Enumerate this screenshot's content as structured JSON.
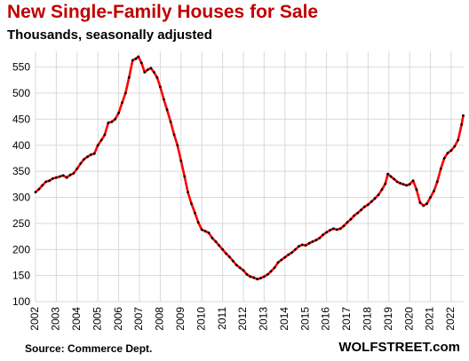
{
  "chart_data": {
    "type": "line",
    "title": "New Single-Family Houses for Sale",
    "subtitle": "Thousands, seasonally adjusted",
    "source": "Source: Commerce Dept.",
    "brand": "WOLFSTREET.com",
    "grid": true,
    "ylim": [
      100,
      580
    ],
    "xlim": [
      2002.0,
      2022.6
    ],
    "yticks": [
      100,
      150,
      200,
      250,
      300,
      350,
      400,
      450,
      500,
      550
    ],
    "xticks": [
      "2002",
      "2003",
      "2004",
      "2005",
      "2006",
      "2007",
      "2008",
      "2009",
      "2010",
      "2011",
      "2012",
      "2013",
      "2014",
      "2015",
      "2016",
      "2017",
      "2018",
      "2019",
      "2020",
      "2021",
      "2022"
    ],
    "line_color": "#ff0000",
    "marker_color": "#000000",
    "series": [
      {
        "name": "",
        "points": [
          [
            2002.0,
            310
          ],
          [
            2002.17,
            316
          ],
          [
            2002.33,
            323
          ],
          [
            2002.5,
            330
          ],
          [
            2002.67,
            332
          ],
          [
            2002.83,
            336
          ],
          [
            2003.0,
            338
          ],
          [
            2003.17,
            340
          ],
          [
            2003.33,
            342
          ],
          [
            2003.5,
            338
          ],
          [
            2003.67,
            343
          ],
          [
            2003.83,
            346
          ],
          [
            2004.0,
            355
          ],
          [
            2004.17,
            365
          ],
          [
            2004.33,
            373
          ],
          [
            2004.5,
            378
          ],
          [
            2004.67,
            382
          ],
          [
            2004.83,
            384
          ],
          [
            2005.0,
            400
          ],
          [
            2005.17,
            410
          ],
          [
            2005.33,
            420
          ],
          [
            2005.5,
            443
          ],
          [
            2005.67,
            445
          ],
          [
            2005.83,
            450
          ],
          [
            2006.0,
            462
          ],
          [
            2006.17,
            482
          ],
          [
            2006.33,
            500
          ],
          [
            2006.5,
            530
          ],
          [
            2006.67,
            563
          ],
          [
            2006.83,
            566
          ],
          [
            2006.95,
            570
          ],
          [
            2007.1,
            558
          ],
          [
            2007.25,
            540
          ],
          [
            2007.4,
            545
          ],
          [
            2007.55,
            548
          ],
          [
            2007.7,
            540
          ],
          [
            2007.85,
            530
          ],
          [
            2008.0,
            512
          ],
          [
            2008.17,
            488
          ],
          [
            2008.33,
            468
          ],
          [
            2008.5,
            445
          ],
          [
            2008.67,
            420
          ],
          [
            2008.83,
            400
          ],
          [
            2009.0,
            370
          ],
          [
            2009.17,
            340
          ],
          [
            2009.33,
            310
          ],
          [
            2009.5,
            288
          ],
          [
            2009.67,
            270
          ],
          [
            2009.83,
            252
          ],
          [
            2010.0,
            238
          ],
          [
            2010.17,
            235
          ],
          [
            2010.33,
            232
          ],
          [
            2010.5,
            222
          ],
          [
            2010.67,
            215
          ],
          [
            2010.83,
            208
          ],
          [
            2011.0,
            200
          ],
          [
            2011.17,
            192
          ],
          [
            2011.33,
            186
          ],
          [
            2011.5,
            178
          ],
          [
            2011.67,
            170
          ],
          [
            2011.83,
            165
          ],
          [
            2012.0,
            160
          ],
          [
            2012.17,
            152
          ],
          [
            2012.33,
            148
          ],
          [
            2012.5,
            146
          ],
          [
            2012.67,
            143
          ],
          [
            2012.83,
            145
          ],
          [
            2013.0,
            148
          ],
          [
            2013.17,
            152
          ],
          [
            2013.33,
            158
          ],
          [
            2013.5,
            165
          ],
          [
            2013.67,
            175
          ],
          [
            2013.83,
            180
          ],
          [
            2014.0,
            185
          ],
          [
            2014.17,
            190
          ],
          [
            2014.33,
            194
          ],
          [
            2014.5,
            200
          ],
          [
            2014.67,
            206
          ],
          [
            2014.83,
            209
          ],
          [
            2015.0,
            208
          ],
          [
            2015.17,
            212
          ],
          [
            2015.33,
            215
          ],
          [
            2015.5,
            218
          ],
          [
            2015.67,
            222
          ],
          [
            2015.83,
            228
          ],
          [
            2016.0,
            233
          ],
          [
            2016.17,
            237
          ],
          [
            2016.33,
            240
          ],
          [
            2016.5,
            238
          ],
          [
            2016.67,
            240
          ],
          [
            2016.83,
            245
          ],
          [
            2017.0,
            252
          ],
          [
            2017.17,
            258
          ],
          [
            2017.33,
            265
          ],
          [
            2017.5,
            270
          ],
          [
            2017.67,
            276
          ],
          [
            2017.83,
            282
          ],
          [
            2018.0,
            286
          ],
          [
            2018.17,
            292
          ],
          [
            2018.33,
            298
          ],
          [
            2018.5,
            305
          ],
          [
            2018.67,
            315
          ],
          [
            2018.83,
            326
          ],
          [
            2018.95,
            345
          ],
          [
            2019.1,
            340
          ],
          [
            2019.25,
            335
          ],
          [
            2019.4,
            330
          ],
          [
            2019.55,
            327
          ],
          [
            2019.7,
            325
          ],
          [
            2019.85,
            323
          ],
          [
            2020.0,
            325
          ],
          [
            2020.17,
            332
          ],
          [
            2020.33,
            315
          ],
          [
            2020.5,
            290
          ],
          [
            2020.67,
            284
          ],
          [
            2020.83,
            288
          ],
          [
            2021.0,
            300
          ],
          [
            2021.17,
            312
          ],
          [
            2021.33,
            330
          ],
          [
            2021.5,
            355
          ],
          [
            2021.67,
            375
          ],
          [
            2021.83,
            385
          ],
          [
            2022.0,
            390
          ],
          [
            2022.17,
            398
          ],
          [
            2022.33,
            410
          ],
          [
            2022.5,
            440
          ],
          [
            2022.58,
            457
          ]
        ]
      }
    ]
  }
}
